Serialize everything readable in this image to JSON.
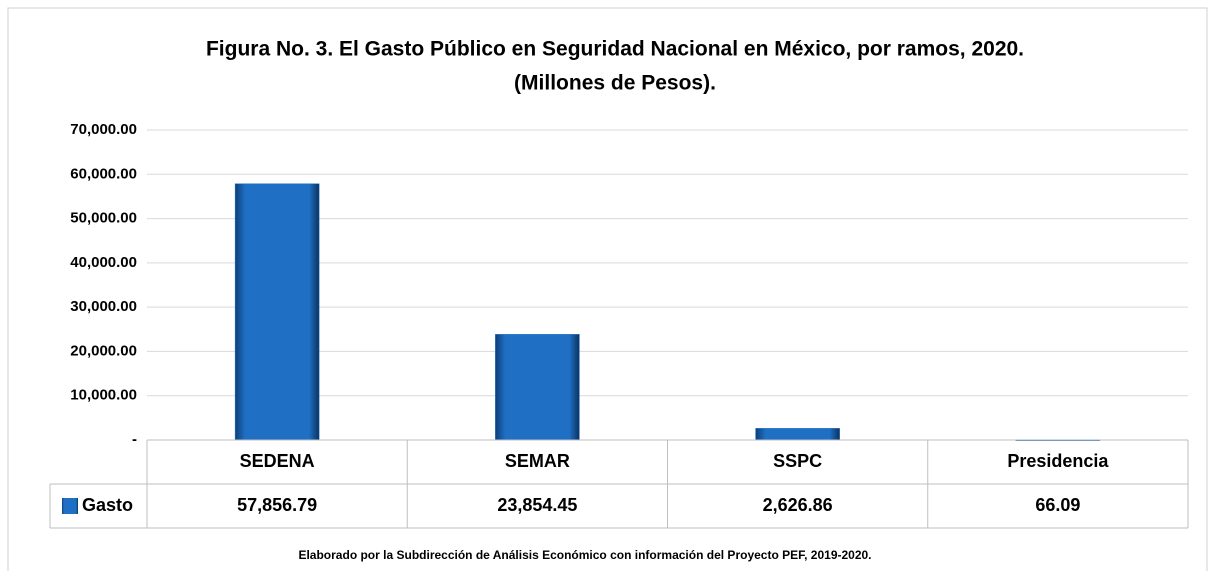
{
  "chart_data": {
    "type": "bar",
    "title": "Figura No. 3. El Gasto Público en Seguridad Nacional en México, por ramos, 2020.",
    "subtitle": "(Millones de Pesos).",
    "categories": [
      "SEDENA",
      "SEMAR",
      "SSPC",
      "Presidencia"
    ],
    "series": [
      {
        "name": "Gasto",
        "color": "#1f6fc5",
        "values": [
          57856.79,
          23854.45,
          2626.86,
          66.09
        ],
        "value_labels": [
          "57,856.79",
          "23,854.45",
          "2,626.86",
          "66.09"
        ]
      }
    ],
    "ylim": [
      0,
      70000
    ],
    "yticks": [
      {
        "value": 0,
        "label": "-"
      },
      {
        "value": 10000,
        "label": "10,000.00"
      },
      {
        "value": 20000,
        "label": "20,000.00"
      },
      {
        "value": 30000,
        "label": "30,000.00"
      },
      {
        "value": 40000,
        "label": "40,000.00"
      },
      {
        "value": 50000,
        "label": "50,000.00"
      },
      {
        "value": 60000,
        "label": "60,000.00"
      },
      {
        "value": 70000,
        "label": "70,000.00"
      }
    ],
    "grid": true,
    "footnote": "Elaborado por la Subdirección de Análisis Económico con información del Proyecto PEF, 2019-2020."
  }
}
